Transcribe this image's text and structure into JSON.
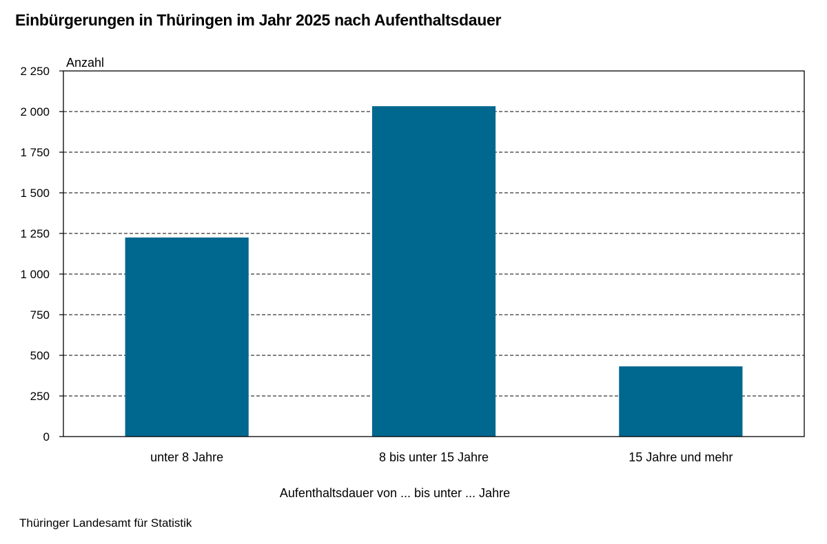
{
  "header": {
    "title": "Einbürgerungen in Thüringen im Jahr 2025 nach Aufenthaltsdauer"
  },
  "footer": {
    "source": "Thüringer Landesamt für Statistik"
  },
  "chart_data": {
    "type": "bar",
    "title": "Einbürgerungen in Thüringen im Jahr 2025 nach Aufenthaltsdauer",
    "ylabel": "Anzahl",
    "xlabel": "Aufenthaltsdauer von ... bis unter ... Jahre",
    "categories": [
      "unter 8 Jahre",
      "8 bis unter 15 Jahre",
      "15 Jahre und mehr"
    ],
    "values": [
      1225,
      2033,
      432
    ],
    "ylim": [
      0,
      2250
    ],
    "yticks": [
      0,
      250,
      500,
      750,
      1000,
      1250,
      1500,
      1750,
      2000,
      2250
    ],
    "ytick_labels": [
      "0",
      "250",
      "500",
      "750",
      "1 000",
      "1 250",
      "1 500",
      "1 750",
      "2 000",
      "2 250"
    ],
    "bar_color": "#00678f",
    "grid": "horizontal dashed",
    "legend": "none"
  }
}
